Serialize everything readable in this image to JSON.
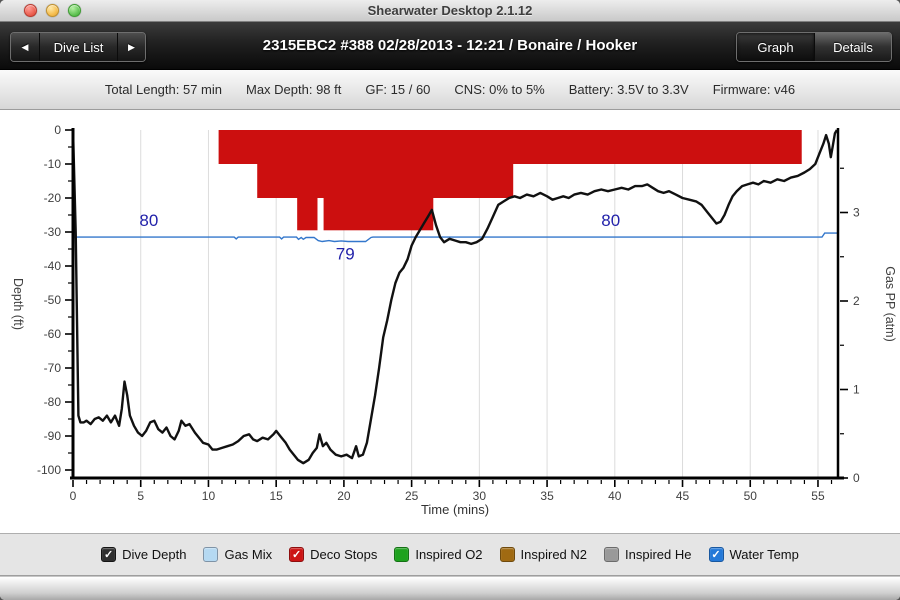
{
  "window": {
    "title": "Shearwater Desktop 2.1.12"
  },
  "nav": {
    "prev_icon": "◀",
    "next_icon": "▶",
    "dive_list_label": "Dive List",
    "dive_title": "2315EBC2 #388 02/28/2013 - 12:21  / Bonaire / Hooker",
    "view_buttons": [
      {
        "label": "Graph",
        "active": true
      },
      {
        "label": "Details",
        "active": false
      }
    ]
  },
  "info_bar": {
    "items": [
      "Total Length: 57 min",
      "Max Depth: 98 ft",
      "GF: 15 / 60",
      "CNS: 0% to 5%",
      "Battery: 3.5V to 3.3V",
      "Firmware: v46"
    ]
  },
  "legend": {
    "items": [
      {
        "label": "Dive Depth",
        "color": "#2f2f2f",
        "border": "#141414",
        "checked": true
      },
      {
        "label": "Gas Mix",
        "color": "#b5d9f2",
        "border": "#7f93a6",
        "checked": false
      },
      {
        "label": "Deco Stops",
        "color": "#cc1414",
        "border": "#8e0e0e",
        "checked": true
      },
      {
        "label": "Inspired O2",
        "color": "#1ea21e",
        "border": "#147114",
        "checked": false
      },
      {
        "label": "Inspired N2",
        "color": "#a06a12",
        "border": "#6f4a0d",
        "checked": false
      },
      {
        "label": "Inspired He",
        "color": "#999999",
        "border": "#6b6b6b",
        "checked": false
      },
      {
        "label": "Water Temp",
        "color": "#2479d8",
        "border": "#1958a0",
        "checked": true
      }
    ]
  },
  "chart_data": {
    "type": "line",
    "title": "",
    "xlabel": "Time (mins)",
    "ylabel_left": "Depth (ft)",
    "ylabel_right": "Gas PP (atm)",
    "xlim": [
      0,
      56.5
    ],
    "x_major_ticks": [
      0,
      5,
      10,
      15,
      20,
      25,
      30,
      35,
      40,
      45,
      50,
      55
    ],
    "x_minor_step": 1,
    "ylim_left": [
      -100,
      0
    ],
    "y_left_major_ticks": [
      0,
      -10,
      -20,
      -30,
      -40,
      -50,
      -60,
      -70,
      -80,
      -90,
      -100
    ],
    "y_left_minor_step": 5,
    "ylim_right": [
      0,
      3.95
    ],
    "y_right_major_ticks": [
      0,
      1,
      2,
      3
    ],
    "y_right_minor_step": 0.5,
    "grid": {
      "vertical_every": 5,
      "color": "#dcdcdc"
    },
    "axis_color": "#000000",
    "tick_label_color": "#404040",
    "annotation_color": "#2222aa",
    "deco_stops": {
      "color": "#cc0f0f",
      "bands": [
        {
          "t0": 10.75,
          "t1": 53.8,
          "d0": 0,
          "d1": -10
        },
        {
          "t0": 13.6,
          "t1": 32.5,
          "d0": -10,
          "d1": -20
        },
        {
          "t0": 16.55,
          "t1": 18.05,
          "d0": -20,
          "d1": -29.5
        },
        {
          "t0": 18.5,
          "t1": 26.6,
          "d0": -20,
          "d1": -29.5
        }
      ]
    },
    "water_temp_scale": {
      "deg_base": 80,
      "depth_at_base": -31.5,
      "ft_per_deg": 1.3
    },
    "annotations": [
      {
        "text": "80",
        "t": 5.6,
        "placement": "above"
      },
      {
        "text": "79",
        "t": 20.1,
        "placement": "below"
      },
      {
        "text": "80",
        "t": 39.7,
        "placement": "above"
      }
    ],
    "series": [
      {
        "name": "Dive Depth",
        "color": "#111111",
        "width": 2.4,
        "unit": "ft",
        "points": [
          [
            0,
            0
          ],
          [
            0.2,
            -30
          ],
          [
            0.4,
            -84
          ],
          [
            0.55,
            -86
          ],
          [
            0.8,
            -86
          ],
          [
            1.0,
            -85.5
          ],
          [
            1.3,
            -86.5
          ],
          [
            1.6,
            -85
          ],
          [
            1.9,
            -84.5
          ],
          [
            2.2,
            -85.5
          ],
          [
            2.5,
            -84
          ],
          [
            2.8,
            -86
          ],
          [
            3.1,
            -84
          ],
          [
            3.4,
            -87
          ],
          [
            3.6,
            -82
          ],
          [
            3.8,
            -74
          ],
          [
            4.0,
            -78
          ],
          [
            4.2,
            -84
          ],
          [
            4.5,
            -87
          ],
          [
            4.8,
            -89
          ],
          [
            5.1,
            -90
          ],
          [
            5.4,
            -88.5
          ],
          [
            5.7,
            -86
          ],
          [
            6.0,
            -85.5
          ],
          [
            6.3,
            -88
          ],
          [
            6.6,
            -89
          ],
          [
            6.9,
            -87.5
          ],
          [
            7.2,
            -90
          ],
          [
            7.5,
            -91
          ],
          [
            7.8,
            -88.5
          ],
          [
            8.0,
            -85.5
          ],
          [
            8.3,
            -87
          ],
          [
            8.6,
            -86.5
          ],
          [
            9.0,
            -89
          ],
          [
            9.3,
            -90.5
          ],
          [
            9.6,
            -92
          ],
          [
            10.0,
            -92.5
          ],
          [
            10.3,
            -94
          ],
          [
            10.6,
            -94
          ],
          [
            11.0,
            -93.5
          ],
          [
            11.4,
            -93
          ],
          [
            11.8,
            -92.5
          ],
          [
            12.2,
            -91.5
          ],
          [
            12.6,
            -90
          ],
          [
            13.0,
            -89.5
          ],
          [
            13.3,
            -91
          ],
          [
            13.6,
            -91.5
          ],
          [
            14.0,
            -90.5
          ],
          [
            14.4,
            -91
          ],
          [
            14.8,
            -89.5
          ],
          [
            15.0,
            -88.5
          ],
          [
            15.3,
            -90
          ],
          [
            15.7,
            -92
          ],
          [
            16.0,
            -94
          ],
          [
            16.3,
            -95.5
          ],
          [
            16.6,
            -97
          ],
          [
            17.0,
            -98
          ],
          [
            17.4,
            -97
          ],
          [
            17.7,
            -95
          ],
          [
            18.0,
            -93.5
          ],
          [
            18.2,
            -89.5
          ],
          [
            18.45,
            -93
          ],
          [
            18.7,
            -92
          ],
          [
            19.0,
            -94
          ],
          [
            19.4,
            -95.5
          ],
          [
            19.8,
            -96
          ],
          [
            20.2,
            -95.5
          ],
          [
            20.6,
            -96.5
          ],
          [
            20.9,
            -93
          ],
          [
            21.1,
            -96
          ],
          [
            21.4,
            -95.5
          ],
          [
            21.7,
            -92
          ],
          [
            22.0,
            -85
          ],
          [
            22.3,
            -78
          ],
          [
            22.6,
            -70
          ],
          [
            22.9,
            -61
          ],
          [
            23.2,
            -56
          ],
          [
            23.5,
            -50
          ],
          [
            23.8,
            -45
          ],
          [
            24.1,
            -42
          ],
          [
            24.4,
            -40.5
          ],
          [
            24.7,
            -38
          ],
          [
            25.0,
            -34
          ],
          [
            25.3,
            -31.5
          ],
          [
            25.6,
            -29.5
          ],
          [
            25.9,
            -27.5
          ],
          [
            26.2,
            -25.5
          ],
          [
            26.5,
            -23.5
          ],
          [
            26.8,
            -28
          ],
          [
            27.1,
            -31.5
          ],
          [
            27.4,
            -33
          ],
          [
            27.8,
            -32
          ],
          [
            28.2,
            -32.5
          ],
          [
            28.6,
            -33
          ],
          [
            29.0,
            -33
          ],
          [
            29.4,
            -33.5
          ],
          [
            29.8,
            -33
          ],
          [
            30.2,
            -32
          ],
          [
            30.6,
            -29
          ],
          [
            31.0,
            -25.5
          ],
          [
            31.4,
            -22
          ],
          [
            31.8,
            -21
          ],
          [
            32.2,
            -20
          ],
          [
            32.6,
            -19.5
          ],
          [
            33.0,
            -20
          ],
          [
            33.5,
            -19
          ],
          [
            34.0,
            -19.5
          ],
          [
            34.5,
            -18.5
          ],
          [
            35.0,
            -19.5
          ],
          [
            35.4,
            -20.5
          ],
          [
            35.8,
            -20
          ],
          [
            36.2,
            -19.5
          ],
          [
            36.6,
            -20
          ],
          [
            37.0,
            -19
          ],
          [
            37.5,
            -18.5
          ],
          [
            38.0,
            -19
          ],
          [
            38.5,
            -18
          ],
          [
            39.0,
            -17.5
          ],
          [
            39.5,
            -18
          ],
          [
            40.0,
            -17.5
          ],
          [
            40.5,
            -17
          ],
          [
            41.0,
            -17.5
          ],
          [
            41.5,
            -16.5
          ],
          [
            42.0,
            -16.5
          ],
          [
            42.4,
            -16
          ],
          [
            42.8,
            -17
          ],
          [
            43.2,
            -18
          ],
          [
            43.6,
            -18.5
          ],
          [
            44.0,
            -18
          ],
          [
            44.5,
            -19
          ],
          [
            45.0,
            -20
          ],
          [
            45.5,
            -20.5
          ],
          [
            46.0,
            -21
          ],
          [
            46.4,
            -22
          ],
          [
            46.8,
            -24
          ],
          [
            47.2,
            -26
          ],
          [
            47.5,
            -27.5
          ],
          [
            47.8,
            -27
          ],
          [
            48.1,
            -25
          ],
          [
            48.4,
            -22
          ],
          [
            48.7,
            -19.5
          ],
          [
            49.0,
            -18
          ],
          [
            49.4,
            -16.5
          ],
          [
            49.8,
            -16
          ],
          [
            50.2,
            -15.5
          ],
          [
            50.6,
            -16
          ],
          [
            51.0,
            -15
          ],
          [
            51.5,
            -15.5
          ],
          [
            52.0,
            -14.5
          ],
          [
            52.5,
            -15
          ],
          [
            53.0,
            -14
          ],
          [
            53.5,
            -13.5
          ],
          [
            54.0,
            -12.5
          ],
          [
            54.4,
            -11.5
          ],
          [
            54.8,
            -10
          ],
          [
            55.1,
            -7
          ],
          [
            55.4,
            -4
          ],
          [
            55.6,
            -1.5
          ],
          [
            55.8,
            -4
          ],
          [
            55.95,
            -8
          ],
          [
            56.1,
            -4.5
          ],
          [
            56.25,
            -1
          ],
          [
            56.4,
            0
          ]
        ]
      },
      {
        "name": "Water Temp",
        "color": "#3377cc",
        "width": 1.4,
        "unit": "F",
        "points": [
          [
            0,
            80
          ],
          [
            11.9,
            80
          ],
          [
            12.05,
            79.6
          ],
          [
            12.2,
            80
          ],
          [
            15.25,
            80
          ],
          [
            15.4,
            79.6
          ],
          [
            15.55,
            80
          ],
          [
            16.5,
            80
          ],
          [
            16.65,
            79.5
          ],
          [
            16.85,
            79.9
          ],
          [
            17.0,
            79.5
          ],
          [
            17.2,
            79.9
          ],
          [
            17.8,
            79.9
          ],
          [
            18.1,
            79.2
          ],
          [
            18.4,
            79
          ],
          [
            18.9,
            79.2
          ],
          [
            19.3,
            79
          ],
          [
            19.8,
            79.15
          ],
          [
            20.3,
            79
          ],
          [
            21.6,
            79
          ],
          [
            22.0,
            79.9
          ],
          [
            22.15,
            80
          ],
          [
            55.3,
            80
          ],
          [
            55.5,
            80.9
          ],
          [
            56.5,
            80.9
          ]
        ]
      }
    ]
  }
}
